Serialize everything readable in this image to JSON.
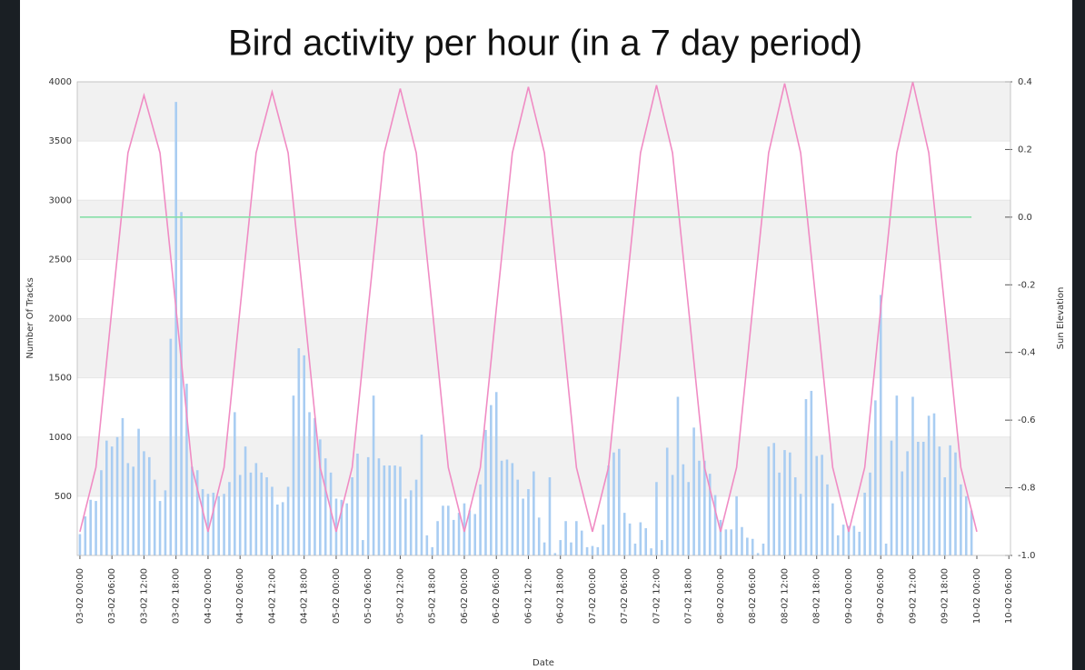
{
  "chart_data": {
    "type": "bar",
    "title": "Bird activity per hour  (in a 7 day period)",
    "xlabel": "Date",
    "ylabel": "Number Of Tracks",
    "y2label": "Sun Elevation",
    "xlim": [
      -0.5,
      174.3
    ],
    "xticks": [
      {
        "value": 0,
        "label": "03-02 00:00"
      },
      {
        "value": 6,
        "label": "03-02 06:00"
      },
      {
        "value": 12,
        "label": "03-02 12:00"
      },
      {
        "value": 18,
        "label": "03-02 18:00"
      },
      {
        "value": 24,
        "label": "04-02 00:00"
      },
      {
        "value": 30,
        "label": "04-02 06:00"
      },
      {
        "value": 36,
        "label": "04-02 12:00"
      },
      {
        "value": 42,
        "label": "04-02 18:00"
      },
      {
        "value": 48,
        "label": "05-02 00:00"
      },
      {
        "value": 54,
        "label": "05-02 06:00"
      },
      {
        "value": 60,
        "label": "05-02 12:00"
      },
      {
        "value": 66,
        "label": "05-02 18:00"
      },
      {
        "value": 72,
        "label": "06-02 00:00"
      },
      {
        "value": 78,
        "label": "06-02 06:00"
      },
      {
        "value": 84,
        "label": "06-02 12:00"
      },
      {
        "value": 90,
        "label": "06-02 18:00"
      },
      {
        "value": 96,
        "label": "07-02 00:00"
      },
      {
        "value": 102,
        "label": "07-02 06:00"
      },
      {
        "value": 108,
        "label": "07-02 12:00"
      },
      {
        "value": 114,
        "label": "07-02 18:00"
      },
      {
        "value": 120,
        "label": "08-02 00:00"
      },
      {
        "value": 126,
        "label": "08-02 06:00"
      },
      {
        "value": 132,
        "label": "08-02 12:00"
      },
      {
        "value": 138,
        "label": "08-02 18:00"
      },
      {
        "value": 144,
        "label": "09-02 00:00"
      },
      {
        "value": 150,
        "label": "09-02 06:00"
      },
      {
        "value": 156,
        "label": "09-02 12:00"
      },
      {
        "value": 162,
        "label": "09-02 18:00"
      },
      {
        "value": 168,
        "label": "10-02 00:00"
      },
      {
        "value": 174,
        "label": "10-02 06:00"
      }
    ],
    "ylim": [
      0,
      4000
    ],
    "yticks": [
      500,
      1000,
      1500,
      2000,
      2500,
      3000,
      3500,
      4000
    ],
    "y2lim": [
      -1.0,
      0.4
    ],
    "y2ticks": [
      {
        "value": -1.0,
        "label": "-1.0"
      },
      -0.8,
      -0.6,
      -0.4,
      -0.2,
      {
        "value": 0.0,
        "label": "0.0"
      },
      0.2,
      0.4
    ],
    "grid": true,
    "series": [
      {
        "type": "bar",
        "color": "#a9cdf2",
        "x": [
          0,
          1,
          2,
          3,
          4,
          5,
          6,
          7,
          8,
          9,
          10,
          11,
          12,
          13,
          14,
          15,
          16,
          17,
          18,
          19,
          20,
          21,
          22,
          23,
          24,
          25,
          26,
          27,
          28,
          29,
          30,
          31,
          32,
          33,
          34,
          35,
          36,
          37,
          38,
          39,
          40,
          41,
          42,
          43,
          44,
          45,
          46,
          47,
          48,
          49,
          50,
          51,
          52,
          53,
          54,
          55,
          56,
          57,
          58,
          59,
          60,
          61,
          62,
          63,
          64,
          65,
          66,
          67,
          68,
          69,
          70,
          71,
          72,
          73,
          74,
          75,
          76,
          77,
          78,
          79,
          80,
          81,
          82,
          83,
          84,
          85,
          86,
          87,
          88,
          89,
          90,
          91,
          92,
          93,
          94,
          95,
          96,
          97,
          98,
          99,
          100,
          101,
          102,
          103,
          104,
          105,
          106,
          107,
          108,
          109,
          110,
          111,
          112,
          113,
          114,
          115,
          116,
          117,
          118,
          119,
          120,
          121,
          122,
          123,
          124,
          125,
          126,
          127,
          128,
          129,
          130,
          131,
          132,
          133,
          134,
          135,
          136,
          137,
          138,
          139,
          140,
          141,
          142,
          143,
          144,
          145,
          146,
          147,
          148,
          149,
          150,
          151,
          152,
          153,
          154,
          155,
          156,
          157,
          158,
          159,
          160,
          161,
          162,
          163,
          164,
          165,
          166,
          167
        ],
        "values": [
          180,
          330,
          470,
          460,
          720,
          970,
          920,
          1000,
          1160,
          780,
          750,
          1070,
          880,
          830,
          640,
          460,
          550,
          1830,
          3830,
          2900,
          1450,
          750,
          720,
          560,
          520,
          530,
          500,
          520,
          620,
          1210,
          680,
          920,
          700,
          780,
          700,
          660,
          580,
          430,
          450,
          580,
          1350,
          1750,
          1690,
          1210,
          1160,
          980,
          820,
          700,
          480,
          470,
          440,
          660,
          860,
          130,
          830,
          1350,
          820,
          760,
          760,
          760,
          750,
          480,
          550,
          640,
          1020,
          170,
          70,
          290,
          420,
          420,
          300,
          360,
          440,
          380,
          350,
          600,
          1060,
          1270,
          1380,
          800,
          810,
          780,
          640,
          480,
          560,
          710,
          320,
          110,
          660,
          20,
          130,
          290,
          110,
          290,
          210,
          70,
          80,
          70,
          260,
          760,
          870,
          900,
          360,
          270,
          100,
          280,
          230,
          60,
          620,
          130,
          910,
          680,
          1340,
          770,
          620,
          1080,
          800,
          800,
          690,
          510,
          300,
          220,
          220,
          500,
          240,
          150,
          140,
          20,
          100,
          920,
          950,
          700,
          890,
          870,
          660,
          520,
          1320,
          1390,
          840,
          850,
          600,
          440,
          170,
          260,
          250,
          250,
          200,
          530,
          700,
          1310,
          2200,
          100,
          970,
          1350,
          710,
          880,
          1340,
          960,
          960,
          1180,
          1200,
          920,
          660,
          930,
          870,
          600,
          500,
          380
        ]
      },
      {
        "type": "line",
        "axis": "y2",
        "color": "#f08cc4",
        "x": [
          0,
          3,
          6,
          9,
          12,
          15,
          18,
          21,
          24,
          27,
          30,
          33,
          36,
          39,
          42,
          45,
          48,
          51,
          54,
          57,
          60,
          63,
          66,
          69,
          72,
          75,
          78,
          81,
          84,
          87,
          90,
          93,
          96,
          99,
          102,
          105,
          108,
          111,
          114,
          117,
          120,
          123,
          126,
          129,
          132,
          135,
          138,
          141,
          144,
          147,
          150,
          153,
          156,
          159,
          162,
          165,
          168
        ],
        "values": [
          -0.93,
          -0.74,
          -0.27,
          0.19,
          0.36,
          0.19,
          -0.27,
          -0.74,
          -0.93,
          -0.74,
          -0.27,
          0.19,
          0.37,
          0.19,
          -0.27,
          -0.74,
          -0.93,
          -0.74,
          -0.27,
          0.19,
          0.38,
          0.19,
          -0.27,
          -0.74,
          -0.93,
          -0.74,
          -0.27,
          0.19,
          0.385,
          0.19,
          -0.27,
          -0.74,
          -0.93,
          -0.74,
          -0.27,
          0.19,
          0.39,
          0.19,
          -0.27,
          -0.74,
          -0.93,
          -0.74,
          -0.27,
          0.19,
          0.395,
          0.19,
          -0.27,
          -0.74,
          -0.93,
          -0.74,
          -0.27,
          0.19,
          0.4,
          0.19,
          -0.27,
          -0.74,
          -0.93
        ]
      },
      {
        "type": "line",
        "axis": "y2",
        "color": "#86e0a8",
        "x": [
          0,
          167
        ],
        "values": [
          0.0,
          0.0
        ]
      }
    ]
  }
}
